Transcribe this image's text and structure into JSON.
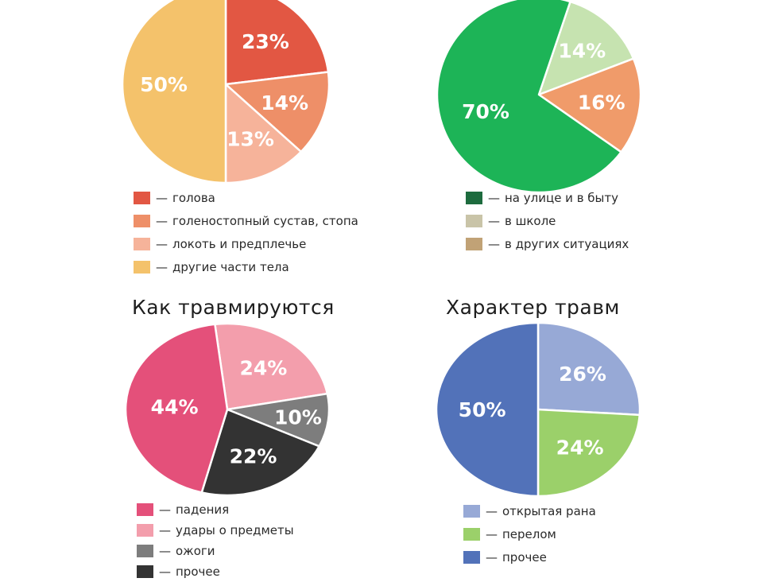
{
  "legend_dash": "—",
  "chart_data": [
    {
      "type": "pie",
      "title": "",
      "slices": [
        {
          "label": "голова",
          "value": 23,
          "display": "23%",
          "color": "#e25743"
        },
        {
          "label": "голеностопный сустав, стопа",
          "value": 14,
          "display": "14%",
          "color": "#ee8f68"
        },
        {
          "label": "локоть и предплечье",
          "value": 13,
          "display": "13%",
          "color": "#f6b39a"
        },
        {
          "label": "другие части тела",
          "value": 50,
          "display": "50%",
          "color": "#f4c26b"
        }
      ],
      "legend": [
        {
          "label": "голова",
          "color": "#e25743"
        },
        {
          "label": "голеностопный сустав, стопа",
          "color": "#ee8f68"
        },
        {
          "label": "локоть и предплечье",
          "color": "#f6b39a"
        },
        {
          "label": "другие части тела",
          "color": "#f4c26b"
        }
      ]
    },
    {
      "type": "pie",
      "title": "",
      "slices": [
        {
          "label": "",
          "value": 14,
          "display": "14%",
          "color": "#c6e3b0"
        },
        {
          "label": "",
          "value": 16,
          "display": "16%",
          "color": "#f09b6a"
        },
        {
          "label": "",
          "value": 70,
          "display": "70%",
          "color": "#1db457"
        }
      ],
      "legend": [
        {
          "label": "на улице и в быту",
          "color": "#1d6b3e"
        },
        {
          "label": "в школе",
          "color": "#c9c4a8"
        },
        {
          "label": "в других ситуациях",
          "color": "#c1a276"
        }
      ]
    },
    {
      "type": "pie",
      "title": "Как травмируются",
      "slices": [
        {
          "label": "удары о предметы",
          "value": 24,
          "display": "24%",
          "color": "#f39eac"
        },
        {
          "label": "ожоги",
          "value": 10,
          "display": "10%",
          "color": "#7d7d7d"
        },
        {
          "label": "прочее",
          "value": 22,
          "display": "22%",
          "color": "#333333"
        },
        {
          "label": "падения",
          "value": 44,
          "display": "44%",
          "color": "#e4507a"
        }
      ],
      "legend": [
        {
          "label": "падения",
          "color": "#e4507a"
        },
        {
          "label": "удары о предметы",
          "color": "#f39eac"
        },
        {
          "label": "ожоги",
          "color": "#7d7d7d"
        },
        {
          "label": "прочее",
          "color": "#333333"
        }
      ]
    },
    {
      "type": "pie",
      "title": "Характер травм",
      "slices": [
        {
          "label": "открытая рана",
          "value": 26,
          "display": "26%",
          "color": "#97a9d6"
        },
        {
          "label": "перелом",
          "value": 24,
          "display": "24%",
          "color": "#9bd06a"
        },
        {
          "label": "прочее",
          "value": 50,
          "display": "50%",
          "color": "#5272b9"
        }
      ],
      "legend": [
        {
          "label": "открытая рана",
          "color": "#97a9d6"
        },
        {
          "label": "перелом",
          "color": "#9bd06a"
        },
        {
          "label": "прочее",
          "color": "#5272b9"
        }
      ]
    }
  ]
}
